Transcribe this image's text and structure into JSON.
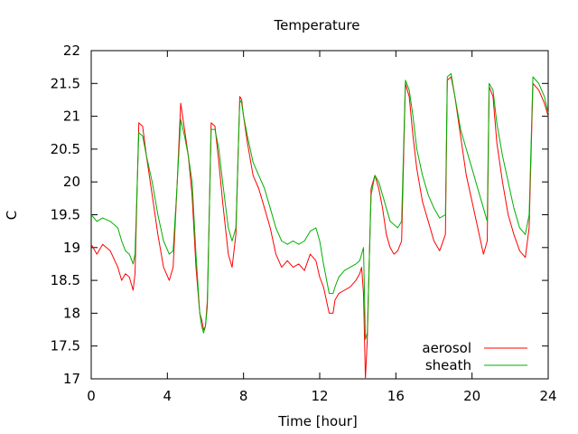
{
  "chart_data": {
    "type": "line",
    "title": "Temperature",
    "xlabel": "Time [hour]",
    "ylabel": "C",
    "xlim": [
      0,
      24
    ],
    "ylim": [
      17,
      22
    ],
    "xticks": [
      0,
      4,
      8,
      12,
      16,
      20,
      24
    ],
    "yticks": [
      17,
      17.5,
      18,
      18.5,
      19,
      19.5,
      20,
      20.5,
      21,
      21.5,
      22
    ],
    "grid": false,
    "legend_position": "bottom-right",
    "series": [
      {
        "name": "aerosol",
        "color": "#ff0000",
        "x": [
          0,
          0.3,
          0.6,
          1.0,
          1.4,
          1.6,
          1.8,
          2.0,
          2.2,
          2.3,
          2.5,
          2.7,
          2.9,
          3.2,
          3.5,
          3.8,
          4.1,
          4.3,
          4.5,
          4.7,
          4.9,
          5.1,
          5.3,
          5.5,
          5.7,
          5.8,
          5.9,
          6.0,
          6.1,
          6.2,
          6.3,
          6.5,
          6.7,
          6.9,
          7.2,
          7.4,
          7.6,
          7.8,
          7.9,
          8.0,
          8.2,
          8.5,
          8.8,
          9.1,
          9.4,
          9.7,
          10.0,
          10.3,
          10.6,
          10.9,
          11.2,
          11.5,
          11.8,
          12.0,
          12.2,
          12.5,
          12.7,
          12.8,
          13.0,
          13.3,
          13.6,
          13.9,
          14.1,
          14.2,
          14.3,
          14.4,
          14.5,
          14.7,
          14.9,
          15.1,
          15.3,
          15.5,
          15.7,
          15.9,
          16.1,
          16.3,
          16.5,
          16.7,
          16.9,
          17.1,
          17.4,
          17.7,
          18.0,
          18.3,
          18.6,
          18.7,
          18.9,
          19.1,
          19.4,
          19.7,
          20.0,
          20.3,
          20.6,
          20.8,
          20.9,
          21.1,
          21.3,
          21.6,
          21.9,
          22.2,
          22.5,
          22.8,
          23.0,
          23.2,
          23.5,
          23.8,
          24.0
        ],
        "y": [
          19.05,
          18.9,
          19.05,
          18.95,
          18.7,
          18.5,
          18.6,
          18.55,
          18.35,
          18.6,
          20.9,
          20.85,
          20.4,
          19.8,
          19.2,
          18.7,
          18.5,
          18.7,
          19.9,
          21.2,
          20.8,
          20.4,
          19.8,
          18.7,
          18.0,
          17.9,
          17.75,
          17.8,
          18.2,
          19.5,
          20.9,
          20.85,
          20.3,
          19.7,
          18.9,
          18.7,
          19.2,
          21.3,
          21.25,
          21.0,
          20.6,
          20.1,
          19.9,
          19.6,
          19.3,
          18.9,
          18.7,
          18.8,
          18.7,
          18.75,
          18.65,
          18.9,
          18.8,
          18.55,
          18.4,
          18.0,
          18.0,
          18.2,
          18.3,
          18.35,
          18.4,
          18.5,
          18.6,
          18.7,
          18.3,
          17.0,
          17.6,
          19.9,
          20.1,
          19.9,
          19.6,
          19.2,
          19.0,
          18.9,
          18.95,
          19.1,
          21.5,
          21.3,
          20.7,
          20.2,
          19.7,
          19.4,
          19.1,
          18.95,
          19.2,
          21.55,
          21.6,
          21.3,
          20.7,
          20.1,
          19.7,
          19.3,
          18.9,
          19.1,
          21.45,
          21.3,
          20.6,
          20.0,
          19.5,
          19.2,
          18.95,
          18.85,
          19.3,
          21.5,
          21.4,
          21.2,
          21.0
        ]
      },
      {
        "name": "sheath",
        "color": "#00b000",
        "x": [
          0,
          0.3,
          0.6,
          1.0,
          1.4,
          1.6,
          1.8,
          2.0,
          2.2,
          2.3,
          2.5,
          2.7,
          2.9,
          3.2,
          3.5,
          3.8,
          4.1,
          4.3,
          4.5,
          4.7,
          4.9,
          5.1,
          5.3,
          5.5,
          5.7,
          5.8,
          5.9,
          6.0,
          6.1,
          6.2,
          6.3,
          6.5,
          6.7,
          6.9,
          7.2,
          7.4,
          7.6,
          7.8,
          7.9,
          8.0,
          8.2,
          8.5,
          8.8,
          9.1,
          9.4,
          9.7,
          10.0,
          10.3,
          10.6,
          10.9,
          11.2,
          11.5,
          11.8,
          12.0,
          12.2,
          12.5,
          12.7,
          12.8,
          13.0,
          13.3,
          13.6,
          13.9,
          14.1,
          14.2,
          14.3,
          14.4,
          14.5,
          14.7,
          14.9,
          15.1,
          15.3,
          15.5,
          15.7,
          15.9,
          16.1,
          16.3,
          16.5,
          16.7,
          16.9,
          17.1,
          17.4,
          17.7,
          18.0,
          18.3,
          18.6,
          18.7,
          18.9,
          19.1,
          19.4,
          19.7,
          20.0,
          20.3,
          20.6,
          20.8,
          20.9,
          21.1,
          21.3,
          21.6,
          21.9,
          22.2,
          22.5,
          22.8,
          23.0,
          23.2,
          23.5,
          23.8,
          24.0
        ],
        "y": [
          19.5,
          19.4,
          19.45,
          19.4,
          19.3,
          19.1,
          18.95,
          18.9,
          18.75,
          18.9,
          20.75,
          20.7,
          20.4,
          20.0,
          19.5,
          19.1,
          18.9,
          18.95,
          19.9,
          20.95,
          20.7,
          20.4,
          20.0,
          18.9,
          18.0,
          17.8,
          17.7,
          17.8,
          18.1,
          19.5,
          20.8,
          20.8,
          20.5,
          20.0,
          19.3,
          19.1,
          19.3,
          21.25,
          21.2,
          21.0,
          20.7,
          20.3,
          20.1,
          19.9,
          19.6,
          19.3,
          19.1,
          19.05,
          19.1,
          19.05,
          19.1,
          19.25,
          19.3,
          19.1,
          18.75,
          18.3,
          18.3,
          18.4,
          18.55,
          18.65,
          18.7,
          18.75,
          18.8,
          18.9,
          19.0,
          17.6,
          17.7,
          19.8,
          20.1,
          20.0,
          19.8,
          19.6,
          19.4,
          19.35,
          19.3,
          19.4,
          21.55,
          21.4,
          21.0,
          20.5,
          20.1,
          19.8,
          19.6,
          19.45,
          19.5,
          21.6,
          21.65,
          21.3,
          20.8,
          20.5,
          20.2,
          19.9,
          19.6,
          19.4,
          21.5,
          21.4,
          20.9,
          20.4,
          20.0,
          19.6,
          19.3,
          19.2,
          19.5,
          21.6,
          21.5,
          21.3,
          21.05
        ]
      }
    ]
  }
}
